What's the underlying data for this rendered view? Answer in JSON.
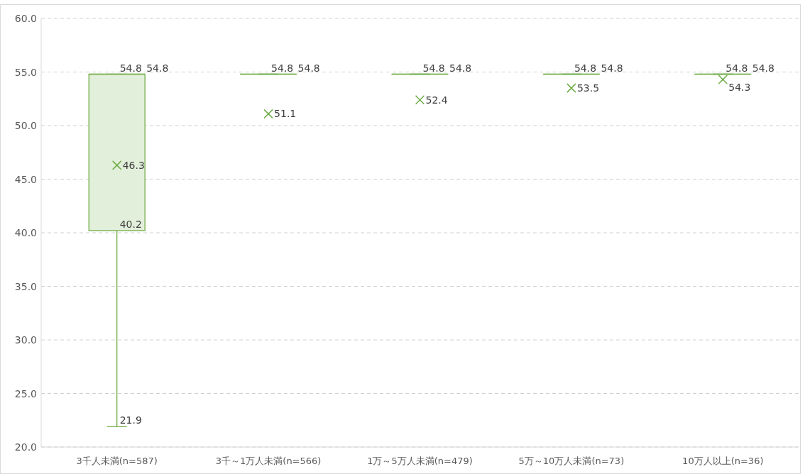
{
  "chart_data": {
    "type": "box",
    "categories": [
      "3千人未満(n=587)",
      "3千～1万人未満(n=566)",
      "1万～5万人未満(n=479)",
      "5万～10万人未満(n=73)",
      "10万人以上(n=36)"
    ],
    "series": [
      {
        "color": "#70ad47",
        "boxes": [
          {
            "low": 21.9,
            "q1": 40.2,
            "median": 54.8,
            "q3": 54.8,
            "high": 54.8
          },
          {
            "low": 54.8,
            "q1": 54.8,
            "median": 54.8,
            "q3": 54.8,
            "high": 54.8
          },
          {
            "low": 54.8,
            "q1": 54.8,
            "median": 54.8,
            "q3": 54.8,
            "high": 54.8
          },
          {
            "low": 54.8,
            "q1": 54.8,
            "median": 54.8,
            "q3": 54.8,
            "high": 54.8
          },
          {
            "low": 54.8,
            "q1": 54.8,
            "median": 54.8,
            "q3": 54.8,
            "high": 54.8
          }
        ]
      },
      {
        "type": "scatter",
        "color": "#70ad47",
        "x": [
          "3千人未満(n=587)",
          "3千～1万人未満(n=566)",
          "1万～5万人未満(n=479)",
          "5万～10万人未満(n=73)",
          "10万人以上(n=36)"
        ],
        "values": [
          46.3,
          51.1,
          52.4,
          53.5,
          54.3
        ]
      }
    ],
    "annotations": [
      {
        "text": "54.8",
        "x": "3千人未満(n=587)",
        "y": 54.8
      },
      {
        "text": "54.8",
        "x": "3千人未満(n=587)",
        "y": 54.8
      },
      {
        "text": "46.3",
        "x": "3千人未満(n=587)",
        "y": 46.3
      },
      {
        "text": "40.2",
        "x": "3千人未満(n=587)",
        "y": 40.2
      },
      {
        "text": "21.9",
        "x": "3千人未満(n=587)",
        "y": 21.9
      },
      {
        "text": "54.8",
        "x": "3千～1万人未満(n=566)",
        "y": 54.8
      },
      {
        "text": "54.8",
        "x": "3千～1万人未満(n=566)",
        "y": 54.8
      },
      {
        "text": "51.1",
        "x": "3千～1万人未満(n=566)",
        "y": 51.1
      },
      {
        "text": "54.8",
        "x": "1万～5万人未満(n=479)",
        "y": 54.8
      },
      {
        "text": "54.8",
        "x": "1万～5万人未満(n=479)",
        "y": 54.8
      },
      {
        "text": "52.4",
        "x": "1万～5万人未満(n=479)",
        "y": 52.4
      },
      {
        "text": "54.8",
        "x": "5万～10万人未満(n=73)",
        "y": 54.8
      },
      {
        "text": "54.8",
        "x": "5万～10万人未満(n=73)",
        "y": 54.8
      },
      {
        "text": "53.5",
        "x": "5万～10万人未満(n=73)",
        "y": 53.5
      },
      {
        "text": "54.8",
        "x": "10万人以上(n=36)",
        "y": 54.8
      },
      {
        "text": "54.8",
        "x": "10万人以上(n=36)",
        "y": 54.8
      },
      {
        "text": "54.3",
        "x": "10万人以上(n=36)",
        "y": 54.3
      }
    ],
    "ylim": [
      20,
      60
    ],
    "yticks": [
      {
        "value": 20,
        "label": "20.0"
      },
      {
        "value": 25,
        "label": "25.0"
      },
      {
        "value": 30,
        "label": "30.0"
      },
      {
        "value": 35,
        "label": "35.0"
      },
      {
        "value": 40,
        "label": "40.0"
      },
      {
        "value": 45,
        "label": "45.0"
      },
      {
        "value": 50,
        "label": "50.0"
      },
      {
        "value": 55,
        "label": "55.0"
      },
      {
        "value": 60,
        "label": "60.0"
      }
    ],
    "grid": "y",
    "marker": "cross"
  }
}
